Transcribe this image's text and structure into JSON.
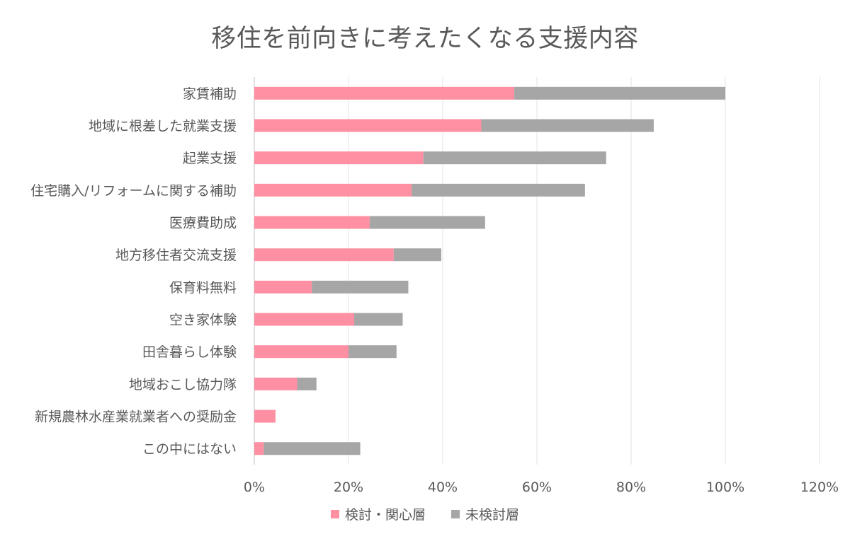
{
  "chart_data": {
    "type": "bar",
    "orientation": "horizontal",
    "stacked": true,
    "title": "移住を前向きに考えたくなる支援内容",
    "xlabel": "",
    "ylabel": "",
    "xlim": [
      0,
      120
    ],
    "xticks": [
      "0%",
      "20%",
      "40%",
      "60%",
      "80%",
      "100%",
      "120%"
    ],
    "grid": true,
    "legend_position": "bottom",
    "categories": [
      "家賃補助",
      "地域に根差した就業支援",
      "起業支援",
      "住宅購入/リフォームに関する補助",
      "医療費助成",
      "地方移住者交流支援",
      "保育料無料",
      "空き家体験",
      "田舎暮らし体験",
      "地域おこし協力隊",
      "新規農林水産業就業者への奨励金",
      "この中にはない"
    ],
    "series": [
      {
        "name": "検討・関心層",
        "color": "#FF8FA3",
        "values": [
          55.2,
          48.2,
          35.9,
          33.4,
          24.5,
          29.6,
          12.2,
          21.2,
          20.0,
          9.1,
          4.5,
          2.0
        ]
      },
      {
        "name": "未検討層",
        "color": "#A6A6A6",
        "values": [
          44.8,
          36.6,
          38.8,
          36.8,
          24.5,
          10.1,
          20.5,
          10.3,
          10.2,
          4.1,
          0.0,
          20.5
        ]
      }
    ]
  }
}
